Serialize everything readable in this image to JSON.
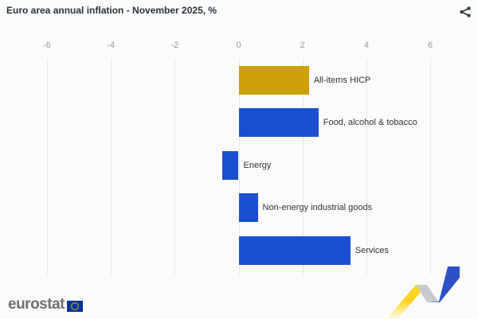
{
  "header": {
    "title": "Euro area annual inflation - November 2025, %",
    "icons": [
      "share-icon"
    ]
  },
  "chart_data": {
    "type": "bar",
    "orientation": "horizontal",
    "title": "Euro area annual inflation - November 2025, %",
    "categories": [
      "All-items HICP",
      "Food, alcohol & tobacco",
      "Energy",
      "Non-energy industrial goods",
      "Services"
    ],
    "values": [
      2.2,
      2.5,
      -0.5,
      0.6,
      3.5
    ],
    "bar_colors": [
      "#CEA008",
      "#1A4FD0",
      "#1A4FD0",
      "#1A4FD0",
      "#1A4FD0"
    ],
    "xticks": [
      -6,
      -4,
      -2,
      0,
      2,
      4,
      6
    ],
    "xlim": [
      -7.4,
      7.4
    ],
    "grid": true,
    "legend": "none",
    "xlabel": "",
    "ylabel": ""
  },
  "footer": {
    "logo_text": "eurostat",
    "icons": [
      "eu-flag-icon",
      "line-chart-motif"
    ]
  },
  "colors": {
    "accent_blue": "#1A4FD0",
    "accent_gold": "#CEA008",
    "grid": "#e7e7e7",
    "tick_text": "#9b9b9b",
    "label_text": "#333333",
    "title_text": "#28313b",
    "eu_flag_blue": "#003399",
    "eu_star_yellow": "#FFCC00",
    "motif_yellow": "#FFD521",
    "motif_gray": "#C8CBCE",
    "motif_blue": "#2B50C6"
  }
}
